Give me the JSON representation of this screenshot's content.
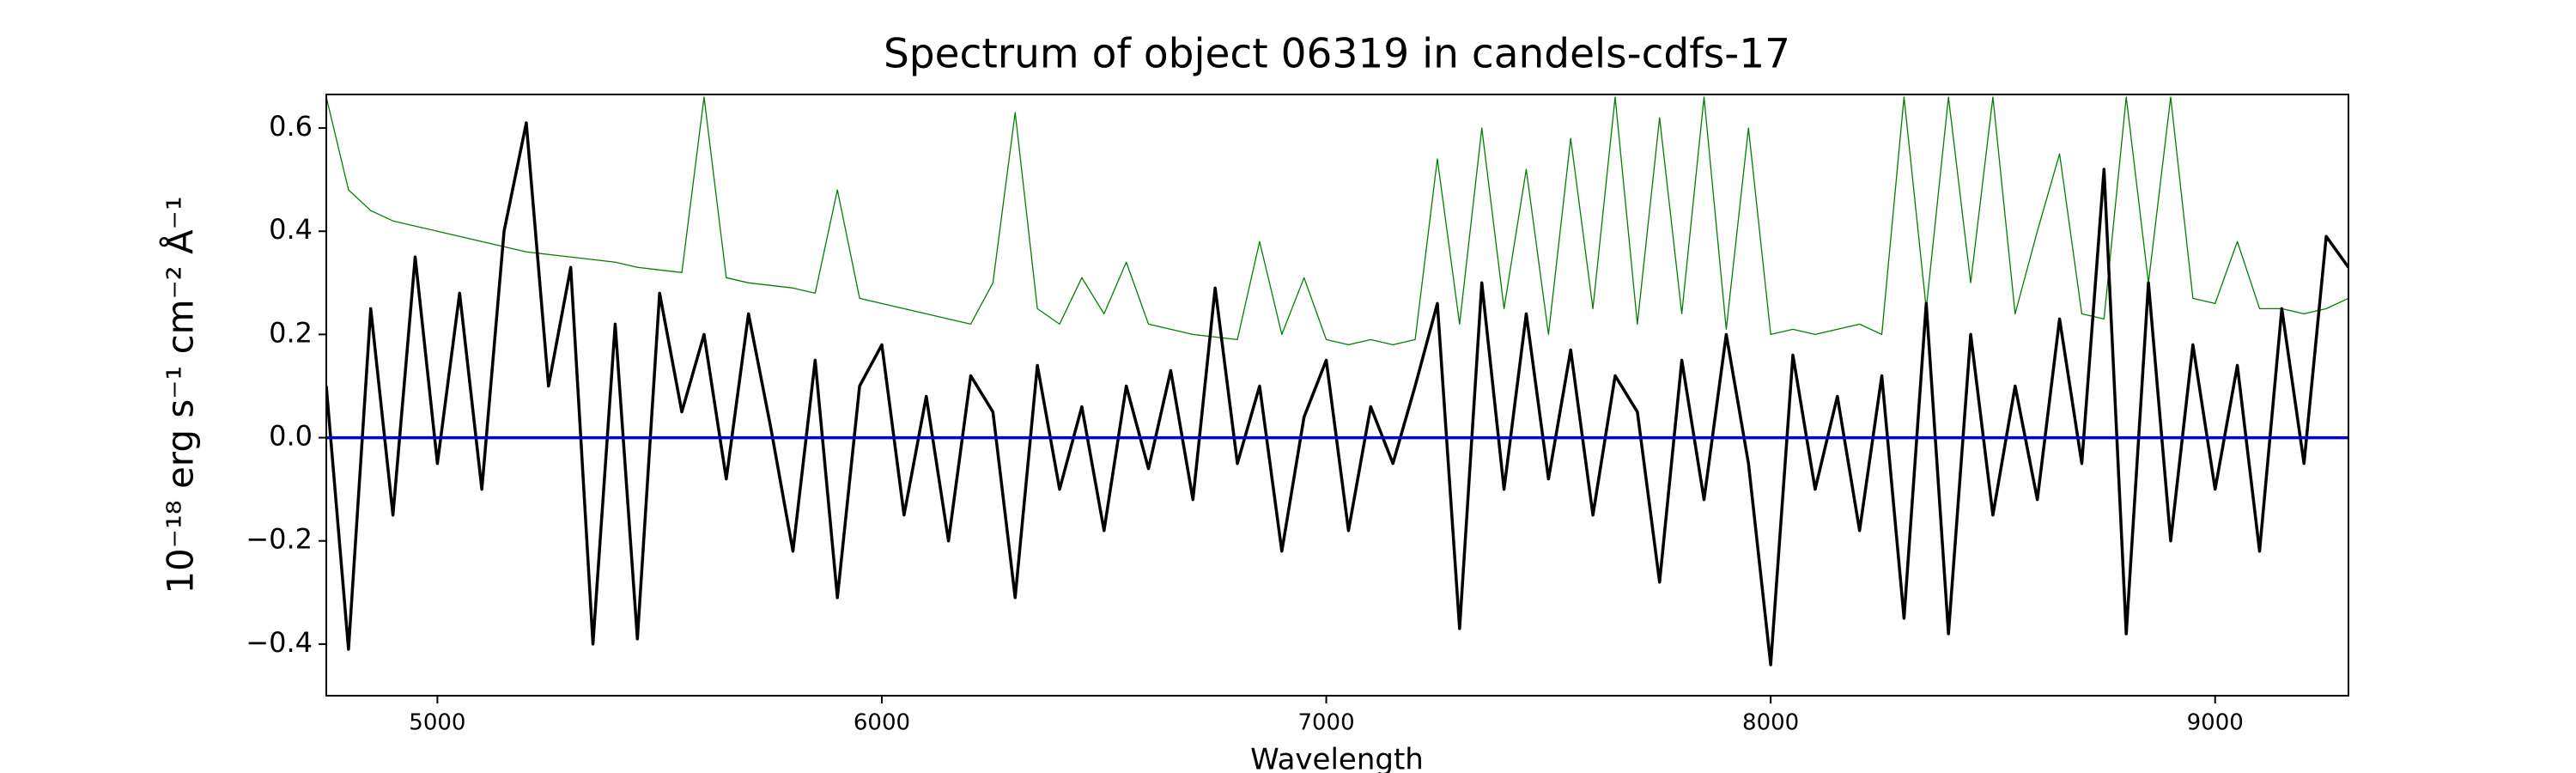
{
  "chart_data": {
    "type": "line",
    "title": "Spectrum of object 06319 in candels-cdfs-17",
    "xlabel": "Wavelength",
    "ylabel": "10⁻¹⁸ erg s⁻¹ cm⁻² Å⁻¹",
    "xlim": [
      4750,
      9300
    ],
    "ylim": [
      -0.5,
      0.665
    ],
    "xticks": [
      5000,
      6000,
      7000,
      8000,
      9000
    ],
    "yticks": [
      {
        "value": -0.4,
        "label": "−0.4"
      },
      {
        "value": -0.2,
        "label": "−0.2"
      },
      {
        "value": 0,
        "label": "0.0"
      },
      0.2,
      0.4,
      0.6
    ],
    "grid": false,
    "x": [
      4750,
      4800,
      4850,
      4900,
      4950,
      5000,
      5050,
      5100,
      5150,
      5200,
      5250,
      5300,
      5350,
      5400,
      5450,
      5500,
      5550,
      5600,
      5650,
      5700,
      5750,
      5800,
      5850,
      5900,
      5950,
      6000,
      6050,
      6100,
      6150,
      6200,
      6250,
      6300,
      6350,
      6400,
      6450,
      6500,
      6550,
      6600,
      6650,
      6700,
      6750,
      6800,
      6850,
      6900,
      6950,
      7000,
      7050,
      7100,
      7150,
      7200,
      7250,
      7300,
      7350,
      7400,
      7450,
      7500,
      7550,
      7600,
      7650,
      7700,
      7750,
      7800,
      7850,
      7900,
      7950,
      8000,
      8050,
      8100,
      8150,
      8200,
      8250,
      8300,
      8350,
      8400,
      8450,
      8500,
      8550,
      8600,
      8650,
      8700,
      8750,
      8800,
      8850,
      8900,
      8950,
      9000,
      9050,
      9100,
      9150,
      9200,
      9250,
      9300
    ],
    "series": [
      {
        "color": "#008000",
        "width": 1.3,
        "values": [
          0.66,
          0.48,
          0.44,
          0.42,
          0.41,
          0.4,
          0.39,
          0.38,
          0.37,
          0.36,
          0.355,
          0.35,
          0.345,
          0.34,
          0.33,
          0.325,
          0.32,
          0.66,
          0.31,
          0.3,
          0.295,
          0.29,
          0.28,
          0.48,
          0.27,
          0.26,
          0.25,
          0.24,
          0.23,
          0.22,
          0.3,
          0.63,
          0.25,
          0.22,
          0.31,
          0.24,
          0.34,
          0.22,
          0.21,
          0.2,
          0.195,
          0.19,
          0.38,
          0.2,
          0.31,
          0.19,
          0.18,
          0.19,
          0.18,
          0.19,
          0.54,
          0.22,
          0.6,
          0.25,
          0.52,
          0.2,
          0.58,
          0.25,
          0.66,
          0.22,
          0.62,
          0.24,
          0.66,
          0.21,
          0.6,
          0.2,
          0.21,
          0.2,
          0.21,
          0.22,
          0.2,
          0.66,
          0.25,
          0.66,
          0.3,
          0.66,
          0.24,
          0.4,
          0.55,
          0.24,
          0.23,
          0.66,
          0.3,
          0.66,
          0.27,
          0.26,
          0.38,
          0.25,
          0.25,
          0.24,
          0.25,
          0.27
        ]
      },
      {
        "color": "#000000",
        "width": 3.5,
        "values": [
          0.1,
          -0.41,
          0.25,
          -0.15,
          0.35,
          -0.05,
          0.28,
          -0.1,
          0.4,
          0.61,
          0.1,
          0.33,
          -0.4,
          0.22,
          -0.39,
          0.28,
          0.05,
          0.2,
          -0.08,
          0.24,
          0.02,
          -0.22,
          0.15,
          -0.31,
          0.1,
          0.18,
          -0.15,
          0.08,
          -0.2,
          0.12,
          0.05,
          -0.31,
          0.14,
          -0.1,
          0.06,
          -0.18,
          0.1,
          -0.06,
          0.13,
          -0.12,
          0.29,
          -0.05,
          0.1,
          -0.22,
          0.04,
          0.15,
          -0.18,
          0.06,
          -0.05,
          0.1,
          0.26,
          -0.37,
          0.3,
          -0.1,
          0.24,
          -0.08,
          0.17,
          -0.15,
          0.12,
          0.05,
          -0.28,
          0.15,
          -0.12,
          0.2,
          -0.05,
          -0.44,
          0.16,
          -0.1,
          0.08,
          -0.18,
          0.12,
          -0.35,
          0.26,
          -0.38,
          0.2,
          -0.15,
          0.1,
          -0.12,
          0.23,
          -0.05,
          0.52,
          -0.38,
          0.3,
          -0.2,
          0.18,
          -0.1,
          0.14,
          -0.22,
          0.25,
          -0.05,
          0.39,
          0.33
        ]
      },
      {
        "color": "#0000cc",
        "width": 3.5,
        "x": [
          4750,
          9300
        ],
        "values": [
          0,
          0
        ]
      }
    ]
  }
}
